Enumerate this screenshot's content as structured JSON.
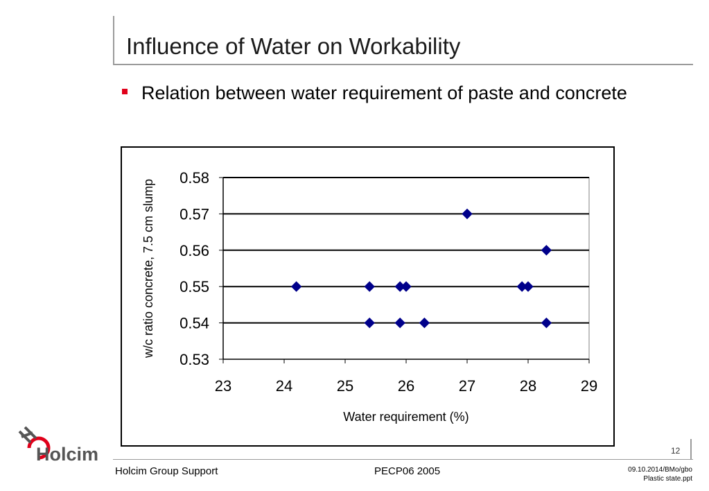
{
  "slide": {
    "title": "Influence of Water on Workability",
    "bullet": "Relation between water requirement of paste and concrete",
    "page_number": "12"
  },
  "footer": {
    "left": "Holcim Group Support",
    "center": "PECP06 2005",
    "right_line1": "09.10.2014/BMo/gbo",
    "right_line2": "Plastic state.ppt"
  },
  "logo": {
    "text": "Holcim",
    "accent_color": "#e0001a"
  },
  "colors": {
    "marker": "#00008b",
    "title_rule": "#9a9a9a",
    "bullet": "#e0001a"
  },
  "chart_data": {
    "type": "scatter",
    "xlabel": "Water requirement (%)",
    "ylabel": "w/c ratio concrete, 7.5 cm slump",
    "xlim": [
      23,
      29
    ],
    "ylim": [
      0.53,
      0.58
    ],
    "x_ticks": [
      "23",
      "24",
      "25",
      "26",
      "27",
      "28",
      "29"
    ],
    "y_ticks": [
      "0.58",
      "0.57",
      "0.56",
      "0.55",
      "0.54",
      "0.53"
    ],
    "grid": "horizontal",
    "marker": "diamond",
    "series": [
      {
        "points": [
          [
            24.2,
            0.55
          ],
          [
            25.4,
            0.55
          ],
          [
            25.9,
            0.55
          ],
          [
            26.0,
            0.55
          ],
          [
            27.9,
            0.55
          ],
          [
            28.0,
            0.55
          ],
          [
            25.4,
            0.54
          ],
          [
            25.9,
            0.54
          ],
          [
            26.3,
            0.54
          ],
          [
            28.3,
            0.54
          ],
          [
            27.0,
            0.57
          ],
          [
            28.3,
            0.56
          ]
        ]
      }
    ]
  }
}
